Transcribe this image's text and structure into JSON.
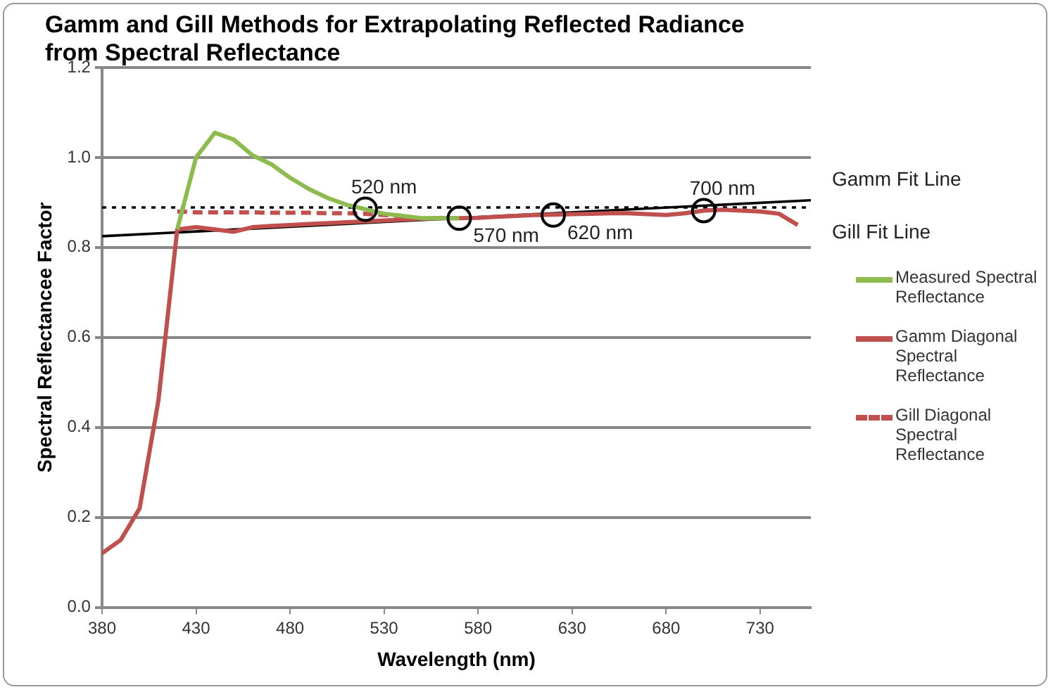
{
  "chart_data": {
    "type": "line",
    "title": "Gamm and Gill Methods for Extrapolating Reflected Radiance from Spectral Reflectance",
    "xlabel": "Wavelength (nm)",
    "ylabel": "Spectral Reflectancee Factor",
    "x": [
      380,
      390,
      400,
      410,
      420,
      430,
      440,
      450,
      460,
      470,
      480,
      490,
      500,
      510,
      520,
      530,
      540,
      550,
      560,
      570,
      580,
      590,
      600,
      610,
      620,
      630,
      640,
      650,
      660,
      670,
      680,
      690,
      700,
      710,
      720,
      730,
      740,
      750
    ],
    "series": [
      {
        "name": "Measured Spectral Reflectance",
        "color": "#8dbb4f",
        "values": [
          null,
          null,
          null,
          null,
          0.84,
          1.0,
          1.055,
          1.04,
          1.005,
          0.985,
          0.955,
          0.93,
          0.91,
          0.895,
          0.885,
          0.875,
          0.87,
          0.865,
          0.865,
          0.865,
          null,
          null,
          null,
          null,
          null,
          null,
          null,
          null,
          null,
          null,
          null,
          null,
          null,
          null,
          null,
          null,
          null,
          null
        ]
      },
      {
        "name": "Gamm Diagonal Spectral Reflectance",
        "color": "#c0504d",
        "values": [
          0.12,
          0.15,
          0.22,
          0.46,
          0.84,
          0.845,
          0.84,
          0.835,
          0.845,
          0.848,
          0.85,
          0.852,
          0.854,
          0.856,
          0.858,
          0.86,
          0.862,
          0.864,
          0.865,
          0.865,
          0.866,
          0.868,
          0.87,
          0.872,
          0.873,
          0.874,
          0.875,
          0.876,
          0.876,
          0.874,
          0.872,
          0.876,
          0.882,
          0.884,
          0.882,
          0.88,
          0.875,
          0.85
        ]
      },
      {
        "name": "Gill Diagonal Spectral Reflectance",
        "color": "#c0504d",
        "line_style": "dashed",
        "values": [
          null,
          null,
          null,
          null,
          0.88,
          0.878,
          0.878,
          0.878,
          0.878,
          0.877,
          0.877,
          0.877,
          0.876,
          0.876,
          0.875,
          0.872,
          0.87,
          null,
          null,
          null,
          null,
          null,
          null,
          null,
          null,
          null,
          null,
          null,
          null,
          null,
          null,
          null,
          null,
          null,
          null,
          null,
          null,
          null
        ]
      },
      {
        "name": "Gamm Fit Line",
        "color": "#000000",
        "x": [
          380,
          757
        ],
        "values": [
          0.825,
          0.905
        ]
      },
      {
        "name": "Gill Fit Line",
        "color": "#000000",
        "line_style": "dotted",
        "x": [
          380,
          757
        ],
        "values": [
          0.889,
          0.889
        ]
      },
      {
        "type": "scatter",
        "color": "#000000",
        "marker": "circle",
        "x": [
          520,
          570,
          620,
          700
        ],
        "values": [
          0.885,
          0.865,
          0.872,
          0.882
        ]
      }
    ],
    "annotations": [
      {
        "text": "520 nm",
        "x": 520,
        "y": 0.885
      },
      {
        "text": "570 nm",
        "x": 570,
        "y": 0.865
      },
      {
        "text": "620 nm",
        "x": 620,
        "y": 0.872
      },
      {
        "text": "700 nm",
        "x": 700,
        "y": 0.882
      }
    ],
    "xlim": [
      380,
      757
    ],
    "xticks": [
      380,
      430,
      480,
      530,
      580,
      630,
      680,
      730
    ],
    "ylim": [
      0,
      1.2
    ],
    "yticks": [
      {
        "value": 0,
        "label": "0.0"
      },
      {
        "value": 0.2,
        "label": "0.2"
      },
      {
        "value": 0.4,
        "label": "0.4"
      },
      {
        "value": 0.6,
        "label": "0.6"
      },
      {
        "value": 0.8,
        "label": "0.8"
      },
      {
        "value": 1.0,
        "label": "1.0"
      },
      {
        "value": 1.2,
        "label": "1.2"
      }
    ],
    "grid": "y",
    "legend": "right",
    "marker": "none"
  }
}
